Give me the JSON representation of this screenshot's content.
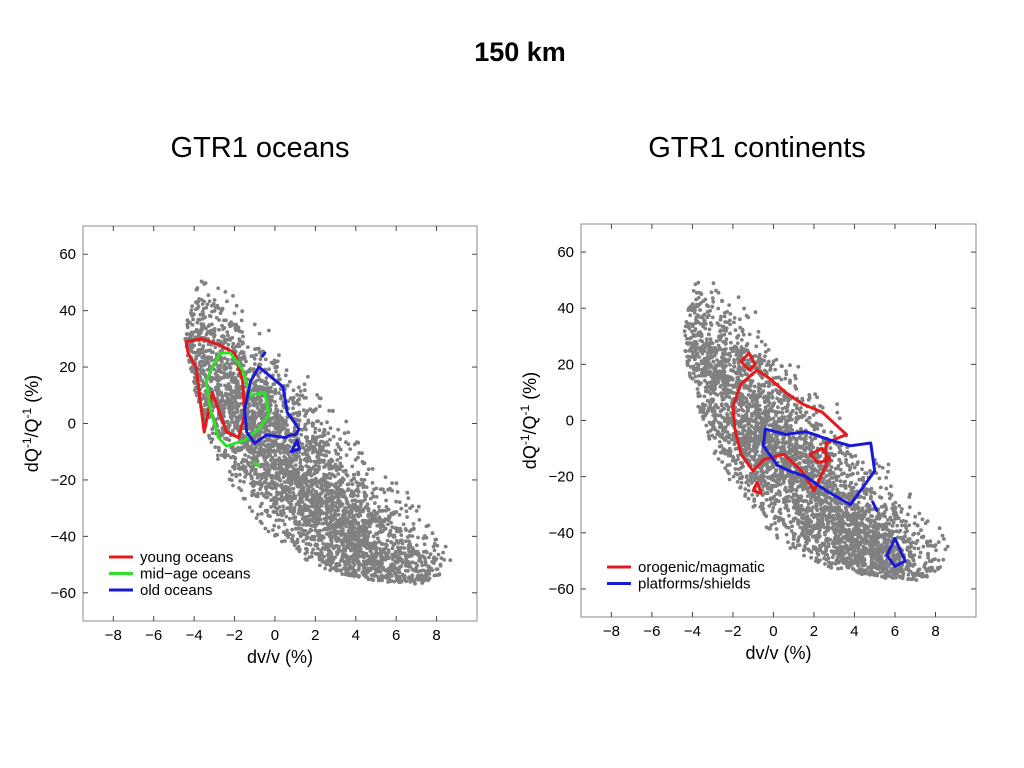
{
  "slide": {
    "title": "150 km",
    "colors": {
      "scatter": "#808080",
      "red": "#e41a1c",
      "green": "#2fe02a",
      "blue": "#1a1ad6"
    }
  },
  "chart_data": [
    {
      "type": "scatter",
      "title": "GTR1 oceans",
      "xlabel": "dv/v (%)",
      "ylabel": "dQ-1/Q-1 (%)",
      "xlim": [
        -9.5,
        10
      ],
      "ylim": [
        -70,
        70
      ],
      "xticks": [
        -8,
        -6,
        -4,
        -2,
        0,
        2,
        4,
        6,
        8
      ],
      "yticks": [
        -60,
        -40,
        -20,
        0,
        20,
        40,
        60
      ],
      "legend_position": "bottom-left",
      "scatter_cloud": {
        "color": "#808080",
        "envelope": [
          [
            -4.3,
            40
          ],
          [
            -4.0,
            48
          ],
          [
            -3.4,
            52
          ],
          [
            -2.4,
            49
          ],
          [
            -1.0,
            41
          ],
          [
            0.5,
            31
          ],
          [
            2.5,
            18
          ],
          [
            4.5,
            3
          ],
          [
            6.5,
            -13
          ],
          [
            8.2,
            -28
          ],
          [
            9.0,
            -43
          ],
          [
            8.6,
            -52
          ],
          [
            7.2,
            -57
          ],
          [
            5.2,
            -56
          ],
          [
            3.0,
            -53
          ],
          [
            1.0,
            -47
          ],
          [
            -0.5,
            -38
          ],
          [
            -1.6,
            -28
          ],
          [
            -2.8,
            -14
          ],
          [
            -3.6,
            2
          ],
          [
            -4.2,
            18
          ],
          [
            -4.5,
            30
          ]
        ]
      },
      "series": [
        {
          "name": "young oceans",
          "color": "#e41a1c",
          "contours": [
            [
              [
                -4.4,
                29
              ],
              [
                -3.6,
                30
              ],
              [
                -2.8,
                28
              ],
              [
                -2.0,
                25
              ],
              [
                -1.6,
                15
              ],
              [
                -1.5,
                3
              ],
              [
                -1.8,
                -5
              ],
              [
                -2.4,
                -3
              ],
              [
                -2.8,
                5
              ],
              [
                -3.1,
                11
              ],
              [
                -3.3,
                4
              ],
              [
                -3.5,
                -3
              ],
              [
                -3.7,
                8
              ],
              [
                -3.9,
                20
              ],
              [
                -4.3,
                25
              ]
            ]
          ]
        },
        {
          "name": "mid−age oceans",
          "color": "#2fe02a",
          "contours": [
            [
              [
                -3.1,
                20
              ],
              [
                -2.7,
                25
              ],
              [
                -2.2,
                25
              ],
              [
                -1.6,
                19
              ],
              [
                -1.2,
                10
              ],
              [
                -0.5,
                11
              ],
              [
                -0.3,
                3
              ],
              [
                -0.8,
                -2
              ],
              [
                -1.5,
                -6
              ],
              [
                -2.4,
                -8
              ],
              [
                -2.8,
                -5
              ],
              [
                -3.2,
                5
              ],
              [
                -3.4,
                15
              ]
            ],
            [
              [
                -1.0,
                -14
              ],
              [
                -0.8,
                -15
              ]
            ]
          ]
        },
        {
          "name": "old oceans",
          "color": "#1a1ad6",
          "contours": [
            [
              [
                -1.2,
                15
              ],
              [
                -0.8,
                20
              ],
              [
                -0.1,
                16
              ],
              [
                0.4,
                13
              ],
              [
                0.6,
                4
              ],
              [
                1.2,
                -2
              ],
              [
                1.0,
                -4
              ],
              [
                0.8,
                -4
              ],
              [
                0.5,
                -5
              ],
              [
                -0.4,
                -4
              ],
              [
                -1.0,
                -7
              ],
              [
                -1.4,
                -3
              ],
              [
                -1.5,
                5
              ]
            ],
            [
              [
                -0.6,
                24
              ],
              [
                -0.5,
                25
              ]
            ],
            [
              [
                0.8,
                -10
              ],
              [
                1.2,
                -9
              ],
              [
                1.1,
                -6
              ]
            ]
          ]
        }
      ]
    },
    {
      "type": "scatter",
      "title": "GTR1 continents",
      "xlabel": "dv/v (%)",
      "ylabel": "dQ-1/Q-1 (%)",
      "xlim": [
        -9.5,
        10
      ],
      "ylim": [
        -70,
        70
      ],
      "xticks": [
        -8,
        -6,
        -4,
        -2,
        0,
        2,
        4,
        6,
        8
      ],
      "yticks": [
        -60,
        -40,
        -20,
        0,
        20,
        40,
        60
      ],
      "legend_position": "bottom-left",
      "scatter_cloud": {
        "color": "#808080",
        "envelope": [
          [
            -4.3,
            40
          ],
          [
            -4.0,
            48
          ],
          [
            -3.4,
            52
          ],
          [
            -2.4,
            49
          ],
          [
            -1.0,
            41
          ],
          [
            0.5,
            31
          ],
          [
            2.5,
            18
          ],
          [
            4.5,
            3
          ],
          [
            6.5,
            -13
          ],
          [
            8.2,
            -28
          ],
          [
            9.0,
            -43
          ],
          [
            8.6,
            -52
          ],
          [
            7.2,
            -57
          ],
          [
            5.2,
            -56
          ],
          [
            3.0,
            -53
          ],
          [
            1.0,
            -47
          ],
          [
            -0.5,
            -38
          ],
          [
            -1.6,
            -28
          ],
          [
            -2.8,
            -14
          ],
          [
            -3.6,
            2
          ],
          [
            -4.2,
            18
          ],
          [
            -4.5,
            30
          ]
        ]
      },
      "series": [
        {
          "name": "orogenic/magmatic",
          "color": "#e41a1c",
          "contours": [
            [
              [
                -2.0,
                5
              ],
              [
                -1.6,
                13
              ],
              [
                -0.8,
                18
              ],
              [
                -0.2,
                15
              ],
              [
                0.6,
                10
              ],
              [
                1.4,
                6
              ],
              [
                2.4,
                3
              ],
              [
                3.6,
                -5
              ],
              [
                2.6,
                -8
              ],
              [
                2.6,
                -16
              ],
              [
                2.0,
                -25
              ],
              [
                1.4,
                -18
              ],
              [
                0.5,
                -12
              ],
              [
                -0.5,
                -14
              ],
              [
                -1.0,
                -18
              ],
              [
                -1.6,
                -12
              ],
              [
                -1.9,
                -3
              ]
            ],
            [
              [
                -1.6,
                21
              ],
              [
                -1.2,
                24
              ],
              [
                -0.9,
                20
              ],
              [
                -1.2,
                18
              ]
            ],
            [
              [
                -1.0,
                -25
              ],
              [
                -0.8,
                -22
              ],
              [
                -0.6,
                -26
              ]
            ],
            [
              [
                1.8,
                -12
              ],
              [
                2.4,
                -10
              ],
              [
                2.8,
                -14
              ],
              [
                2.2,
                -15
              ]
            ]
          ]
        },
        {
          "name": "platforms/shields",
          "color": "#1a1ad6",
          "contours": [
            [
              [
                -0.4,
                -3
              ],
              [
                0.6,
                -5
              ],
              [
                1.6,
                -4
              ],
              [
                2.8,
                -7
              ],
              [
                3.8,
                -9
              ],
              [
                4.8,
                -8
              ],
              [
                5.0,
                -18
              ],
              [
                3.8,
                -30
              ],
              [
                2.6,
                -25
              ],
              [
                1.6,
                -20
              ],
              [
                0.8,
                -18
              ],
              [
                0.2,
                -16
              ],
              [
                -0.5,
                -9
              ]
            ],
            [
              [
                4.9,
                -29
              ],
              [
                5.1,
                -32
              ]
            ],
            [
              [
                5.6,
                -48
              ],
              [
                6.0,
                -42
              ],
              [
                6.5,
                -50
              ],
              [
                6.0,
                -52
              ]
            ]
          ]
        }
      ]
    }
  ]
}
